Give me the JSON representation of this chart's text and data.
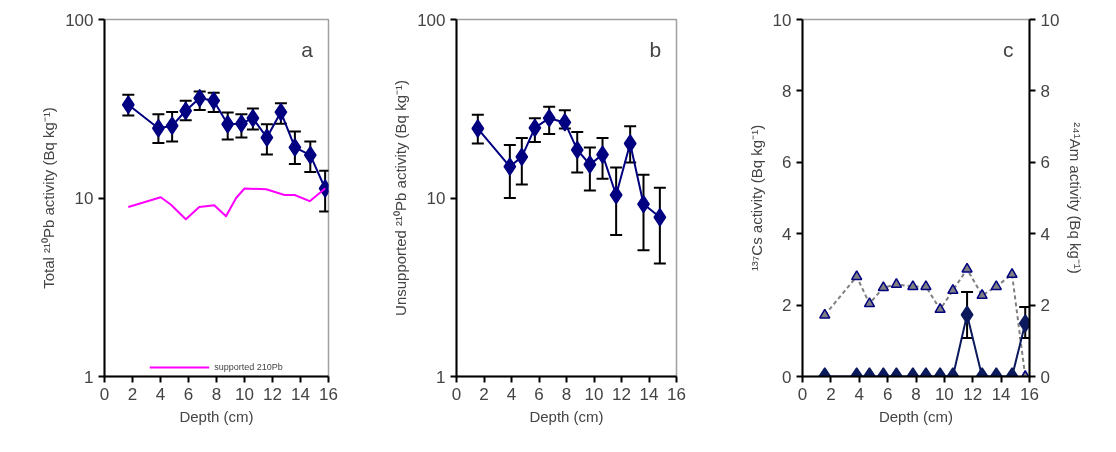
{
  "chart_data": [
    {
      "type": "line",
      "annotations": [
        "a"
      ],
      "xlabel": "Depth (cm)",
      "ylabel": "Total ²¹⁰Pb activity (Bq kg⁻¹)",
      "log": true,
      "xlim": [
        0,
        16
      ],
      "xticks": [
        0,
        2,
        4,
        6,
        8,
        10,
        12,
        14,
        16
      ],
      "ylim": [
        1,
        100
      ],
      "yticks": [
        1,
        10,
        100
      ],
      "grid": false,
      "legend": "bottom",
      "series": [
        {
          "color": "#000080",
          "marker": "diamond",
          "line_style": "solid",
          "x": [
            1.7,
            3.85,
            4.83,
            5.8,
            6.8,
            7.8,
            8.8,
            9.78,
            10.6,
            11.6,
            12.6,
            13.6,
            14.7,
            15.76
          ],
          "values": [
            33.3,
            24.6,
            25.4,
            30.8,
            36.3,
            35.1,
            25.9,
            26.1,
            28.0,
            21.8,
            30.3,
            19.2,
            17.4,
            11.3
          ],
          "errors": [
            [
              29.0,
              37.9
            ],
            [
              20.3,
              29.5
            ],
            [
              20.7,
              30.3
            ],
            [
              27.3,
              35.1
            ],
            [
              31.1,
              39.5
            ],
            [
              30.3,
              38.9
            ],
            [
              21.3,
              30.1
            ],
            [
              21.8,
              29.5
            ],
            [
              24.2,
              31.7
            ],
            [
              17.5,
              25.9
            ],
            [
              26.1,
              34.0
            ],
            [
              15.5,
              23.6
            ],
            [
              14.0,
              20.7
            ],
            [
              8.4,
              14.2
            ]
          ]
        },
        {
          "name": "supported 210Pb",
          "color": "#ff00ff",
          "marker": "none",
          "line_style": "solid",
          "x": [
            1.7,
            4.02,
            4.73,
            5.81,
            6.77,
            7.84,
            8.68,
            9.4,
            10.0,
            11.55,
            12.86,
            13.58,
            14.66,
            15.76
          ],
          "values": [
            8.9,
            10.1,
            9.2,
            7.6,
            8.9,
            9.1,
            7.9,
            10.0,
            11.3,
            11.2,
            10.4,
            10.4,
            9.6,
            11.3
          ]
        }
      ]
    },
    {
      "type": "line",
      "annotations": [
        "b"
      ],
      "xlabel": "Depth (cm)",
      "ylabel": "Unsupported ²¹⁰Pb activity (Bq kg⁻¹)",
      "log": true,
      "xlim": [
        0,
        16
      ],
      "xticks": [
        0,
        2,
        4,
        6,
        8,
        10,
        12,
        14,
        16
      ],
      "ylim": [
        1,
        100
      ],
      "yticks": [
        1,
        10,
        100
      ],
      "grid": false,
      "series": [
        {
          "color": "#000080",
          "marker": "diamond",
          "line_style": "solid",
          "x": [
            1.55,
            3.88,
            4.75,
            5.7,
            6.74,
            7.88,
            8.78,
            9.7,
            10.62,
            11.61,
            12.63,
            13.6,
            14.79
          ],
          "values": [
            24.5,
            15.0,
            17.0,
            24.7,
            28.0,
            26.5,
            18.6,
            15.4,
            17.5,
            10.4,
            20.2,
            9.25,
            7.8
          ],
          "errors": [
            [
              20.2,
              29.3
            ],
            [
              10.0,
              19.8
            ],
            [
              11.9,
              21.7
            ],
            [
              20.6,
              28.0
            ],
            [
              22.8,
              32.4
            ],
            [
              24.5,
              31.0
            ],
            [
              13.9,
              23.4
            ],
            [
              11.0,
              19.2
            ],
            [
              12.8,
              21.7
            ],
            [
              6.2,
              14.8
            ],
            [
              15.8,
              25.2
            ],
            [
              5.1,
              13.5
            ],
            [
              4.3,
              11.4
            ]
          ]
        }
      ]
    },
    {
      "type": "line",
      "annotations": [
        "c"
      ],
      "xlabel": "Depth (cm)",
      "ylabel": "¹³⁷Cs activity (Bq kg⁻¹)",
      "y2label": "²⁴¹Am activity (Bq kg⁻¹)",
      "xlim": [
        0,
        16
      ],
      "xticks": [
        0,
        2,
        4,
        6,
        8,
        10,
        12,
        14,
        16
      ],
      "ylim": [
        0,
        10
      ],
      "yticks": [
        0,
        2,
        4,
        6,
        8,
        10
      ],
      "y2lim": [
        0,
        10
      ],
      "y2ticks": [
        0,
        2,
        4,
        6,
        8,
        10
      ],
      "grid": false,
      "series": [
        {
          "color": "#808080",
          "marker": "triangle",
          "line_style": "dashed",
          "axis": "y2",
          "x": [
            1.57,
            3.82,
            4.72,
            5.7,
            6.62,
            7.78,
            8.7,
            9.7,
            10.6,
            11.6,
            12.66,
            13.66,
            14.77,
            15.7
          ],
          "values": [
            1.72,
            2.8,
            2.04,
            2.49,
            2.58,
            2.52,
            2.52,
            1.88,
            2.41,
            3.01,
            2.27,
            2.52,
            2.86,
            0
          ]
        },
        {
          "color": "#0a1a5c",
          "marker": "diamond",
          "line_style": "solid",
          "x": [
            1.57,
            3.82,
            4.72,
            5.7,
            6.62,
            7.78,
            8.7,
            9.7,
            10.6,
            11.6,
            12.66,
            13.66,
            14.77,
            15.7
          ],
          "values": [
            0,
            0,
            0,
            0,
            0,
            0,
            0,
            0,
            0,
            1.73,
            0,
            0,
            0,
            1.49
          ],
          "errors": [
            null,
            null,
            null,
            null,
            null,
            null,
            null,
            null,
            null,
            [
              1.08,
              2.37
            ],
            null,
            null,
            null,
            [
              1.08,
              1.95
            ]
          ]
        }
      ]
    }
  ]
}
